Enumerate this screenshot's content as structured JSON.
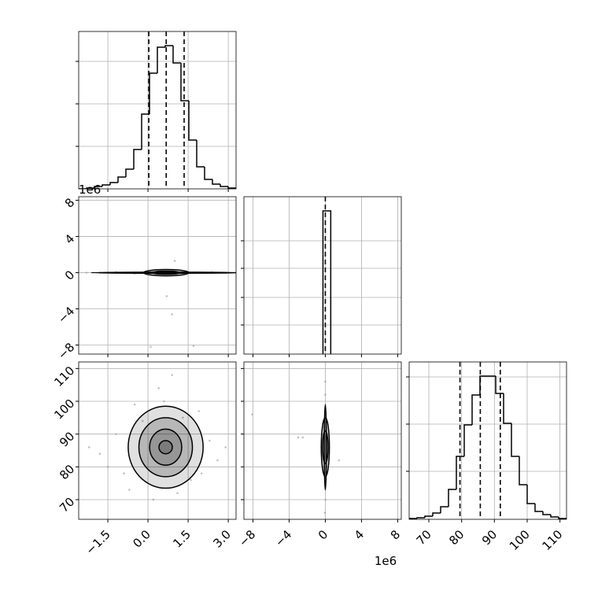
{
  "chart_data": [
    {
      "type": "histogram",
      "xlim": [
        -2.59,
        3.29
      ],
      "ylim": [
        0,
        200
      ],
      "yticks": [
        54,
        108,
        162
      ],
      "bins": [
        -2.59,
        -2.296,
        -2.002,
        -1.708,
        -1.414,
        -1.12,
        -0.826,
        -0.532,
        -0.238,
        0.056,
        0.35,
        0.644,
        0.938,
        1.232,
        1.526,
        1.82,
        2.114,
        2.408,
        2.702,
        2.996,
        3.29
      ],
      "counts": [
        0,
        1,
        3,
        5,
        8,
        15,
        25,
        50,
        95,
        147,
        180,
        182,
        160,
        112,
        62,
        28,
        12,
        6,
        3,
        1
      ],
      "quantiles": [
        0.03,
        0.68,
        1.35
      ],
      "color": "#000000"
    },
    {
      "type": "scatter",
      "xlim": [
        -2.59,
        3.29
      ],
      "ylim": [
        -9,
        8.4
      ],
      "y_offset": "1e6",
      "yticks": [
        {
          "value": -8,
          "label": "−8"
        },
        {
          "value": -4,
          "label": "−4"
        },
        0,
        4,
        8
      ],
      "x": [
        -1.8,
        -1.2,
        -0.5,
        0.2,
        1.2,
        1.8,
        2.4,
        2.9,
        -2.3,
        0.7,
        0.9,
        1.0,
        1.7,
        0.1
      ],
      "y": [
        0,
        0.05,
        -0.1,
        0.1,
        -0.05,
        0,
        0.05,
        0,
        0,
        -2.6,
        -4.6,
        1.3,
        -8.1,
        -8.2
      ],
      "contours": [
        {
          "cx": 0.68,
          "cy": 0,
          "rx": 2.8,
          "ry": 0.06
        },
        {
          "cx": 0.68,
          "cy": 0,
          "rx": 0.85,
          "ry": 0.35
        },
        {
          "cx": 0.68,
          "cy": 0,
          "rx": 0.5,
          "ry": 0.18
        }
      ],
      "color": "#000000"
    },
    {
      "type": "histogram",
      "xlim": [
        -9,
        8.4
      ],
      "ylim": [
        0,
        200
      ],
      "yticks": [
        37,
        72,
        109,
        144
      ],
      "bins": [
        -0.26,
        0.6
      ],
      "counts": [
        182
      ],
      "quantiles": [
        0
      ],
      "color": "#000000"
    },
    {
      "type": "scatter",
      "xlim": [
        -2.59,
        3.29
      ],
      "ylim": [
        64,
        112
      ],
      "xticks": [
        {
          "value": -1.5,
          "label": "−1.5"
        },
        {
          "value": 0,
          "label": "0.0"
        },
        {
          "value": 1.5,
          "label": "1.5"
        },
        {
          "value": 3,
          "label": "3.0"
        }
      ],
      "yticks": [
        70,
        80,
        90,
        100,
        110
      ],
      "x": [
        -1.8,
        -1.2,
        -0.9,
        2.3,
        2.6,
        1.9,
        -0.5,
        0.4,
        1.1,
        0.2,
        2.9,
        -1.5,
        0.9,
        -0.2,
        1.6,
        -2.2,
        0.6,
        1.3,
        -0.7,
        2.0
      ],
      "y": [
        84,
        90,
        78,
        88,
        82,
        97,
        99,
        104,
        72,
        70,
        86,
        80,
        108,
        94,
        76,
        86,
        100,
        95,
        73,
        78
      ],
      "contours": [
        {
          "cx": 0.66,
          "cy": 86,
          "rx": 1.4,
          "ry": 12.5
        },
        {
          "cx": 0.66,
          "cy": 86,
          "rx": 1.0,
          "ry": 9
        },
        {
          "cx": 0.66,
          "cy": 86,
          "rx": 0.6,
          "ry": 5.5
        },
        {
          "cx": 0.66,
          "cy": 86,
          "rx": 0.25,
          "ry": 2
        }
      ],
      "color": "#000000"
    },
    {
      "type": "scatter",
      "xlim": [
        -9,
        8.4
      ],
      "ylim": [
        64,
        112
      ],
      "x_offset": "1e6",
      "xticks": [
        {
          "value": -8,
          "label": "−8"
        },
        {
          "value": -4,
          "label": "−4"
        },
        0,
        4,
        8
      ],
      "x": [
        0,
        0,
        0.02,
        -0.05,
        -8.1,
        -3,
        -2.5,
        1.5,
        0.1,
        -0.1
      ],
      "y": [
        102,
        106,
        70,
        66,
        96,
        89,
        89,
        82,
        80,
        92
      ],
      "contours": [
        {
          "cx": 0,
          "cy": 86,
          "rx": 0.12,
          "ry": 13
        },
        {
          "cx": 0,
          "cy": 86,
          "rx": 0.45,
          "ry": 9
        },
        {
          "cx": 0,
          "cy": 86,
          "rx": 0.3,
          "ry": 5
        }
      ],
      "color": "#000000"
    },
    {
      "type": "histogram",
      "xlim": [
        64,
        112
      ],
      "ylim": [
        0,
        200
      ],
      "yticks": [
        61,
        121,
        181
      ],
      "xticks": [
        70,
        80,
        90,
        100,
        110
      ],
      "bins": [
        64,
        66.4,
        68.8,
        71.2,
        73.6,
        76,
        78.4,
        80.8,
        83.2,
        85.6,
        88,
        90.4,
        92.8,
        95.2,
        97.6,
        100,
        102.4,
        104.8,
        107.2,
        109.6,
        112
      ],
      "counts": [
        1,
        2,
        4,
        8,
        16,
        38,
        80,
        120,
        158,
        182,
        182,
        160,
        122,
        80,
        44,
        20,
        10,
        6,
        3,
        1
      ],
      "quantiles": [
        79.5,
        85.7,
        91.8
      ],
      "color": "#000000"
    }
  ]
}
